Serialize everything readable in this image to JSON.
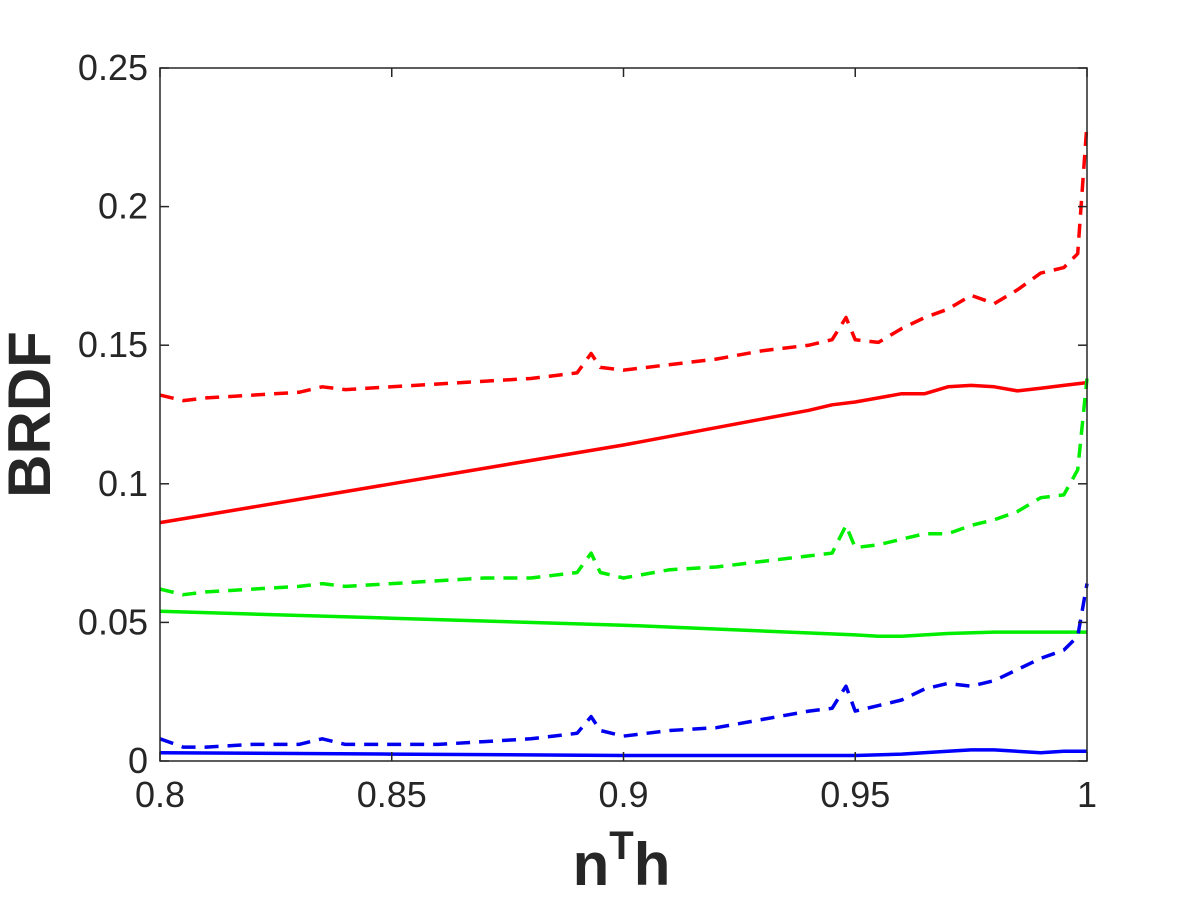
{
  "chart_data": {
    "type": "line",
    "title": "",
    "xlabel_base": "n",
    "xlabel_sup": "T",
    "xlabel_tail": "h",
    "ylabel": "BRDF",
    "xlim": [
      0.8,
      1.0
    ],
    "ylim": [
      0,
      0.25
    ],
    "xticks": [
      0.8,
      0.85,
      0.9,
      0.95,
      1.0
    ],
    "xtick_labels": [
      "0.8",
      "0.85",
      "0.9",
      "0.95",
      "1"
    ],
    "yticks": [
      0,
      0.05,
      0.1,
      0.15,
      0.2,
      0.25
    ],
    "ytick_labels": [
      "0",
      "0.05",
      "0.1",
      "0.15",
      "0.2",
      "0.25"
    ],
    "grid": false,
    "legend": "none",
    "series": [
      {
        "color": "#ff0000",
        "style": "solid",
        "x": [
          0.8,
          0.85,
          0.9,
          0.94,
          0.945,
          0.95,
          0.955,
          0.96,
          0.965,
          0.97,
          0.975,
          0.98,
          0.985,
          0.99,
          0.995,
          1.0
        ],
        "y": [
          0.086,
          0.1,
          0.114,
          0.1265,
          0.1285,
          0.1295,
          0.131,
          0.1325,
          0.1325,
          0.135,
          0.1355,
          0.135,
          0.1335,
          0.1345,
          0.1355,
          0.1365
        ]
      },
      {
        "color": "#00ee00",
        "style": "solid",
        "x": [
          0.8,
          0.85,
          0.9,
          0.95,
          0.955,
          0.96,
          0.97,
          0.98,
          0.99,
          1.0
        ],
        "y": [
          0.054,
          0.0515,
          0.049,
          0.0455,
          0.045,
          0.045,
          0.046,
          0.0465,
          0.0465,
          0.0465
        ]
      },
      {
        "color": "#0000ff",
        "style": "solid",
        "x": [
          0.8,
          0.85,
          0.9,
          0.95,
          0.96,
          0.97,
          0.975,
          0.98,
          0.99,
          0.995,
          1.0
        ],
        "y": [
          0.003,
          0.0025,
          0.002,
          0.002,
          0.0025,
          0.0035,
          0.004,
          0.004,
          0.003,
          0.0035,
          0.0035
        ]
      },
      {
        "color": "#ff0000",
        "style": "dashed",
        "x": [
          0.8,
          0.805,
          0.81,
          0.82,
          0.83,
          0.835,
          0.84,
          0.85,
          0.86,
          0.87,
          0.88,
          0.89,
          0.893,
          0.895,
          0.9,
          0.91,
          0.92,
          0.93,
          0.94,
          0.945,
          0.948,
          0.95,
          0.955,
          0.96,
          0.965,
          0.97,
          0.975,
          0.98,
          0.985,
          0.99,
          0.995,
          0.998,
          1.0
        ],
        "y": [
          0.132,
          0.13,
          0.131,
          0.132,
          0.133,
          0.135,
          0.134,
          0.135,
          0.136,
          0.137,
          0.138,
          0.14,
          0.147,
          0.142,
          0.141,
          0.143,
          0.145,
          0.148,
          0.15,
          0.152,
          0.16,
          0.152,
          0.151,
          0.156,
          0.16,
          0.163,
          0.168,
          0.165,
          0.17,
          0.176,
          0.178,
          0.183,
          0.23
        ]
      },
      {
        "color": "#00ee00",
        "style": "dashed",
        "x": [
          0.8,
          0.805,
          0.81,
          0.82,
          0.83,
          0.835,
          0.84,
          0.85,
          0.86,
          0.87,
          0.88,
          0.89,
          0.893,
          0.895,
          0.9,
          0.91,
          0.92,
          0.93,
          0.94,
          0.945,
          0.948,
          0.95,
          0.955,
          0.96,
          0.965,
          0.97,
          0.975,
          0.98,
          0.985,
          0.99,
          0.995,
          0.998,
          1.0
        ],
        "y": [
          0.062,
          0.06,
          0.061,
          0.062,
          0.063,
          0.064,
          0.063,
          0.064,
          0.065,
          0.066,
          0.066,
          0.068,
          0.075,
          0.068,
          0.066,
          0.069,
          0.07,
          0.072,
          0.074,
          0.075,
          0.085,
          0.077,
          0.078,
          0.08,
          0.082,
          0.082,
          0.085,
          0.087,
          0.09,
          0.095,
          0.096,
          0.105,
          0.138
        ]
      },
      {
        "color": "#0000ee",
        "style": "dashed",
        "x": [
          0.8,
          0.805,
          0.81,
          0.82,
          0.83,
          0.835,
          0.84,
          0.85,
          0.86,
          0.87,
          0.88,
          0.89,
          0.893,
          0.895,
          0.9,
          0.91,
          0.92,
          0.93,
          0.94,
          0.945,
          0.948,
          0.95,
          0.955,
          0.96,
          0.965,
          0.97,
          0.975,
          0.98,
          0.985,
          0.99,
          0.995,
          0.998,
          1.0
        ],
        "y": [
          0.008,
          0.005,
          0.005,
          0.006,
          0.006,
          0.008,
          0.006,
          0.006,
          0.006,
          0.007,
          0.008,
          0.01,
          0.016,
          0.011,
          0.009,
          0.011,
          0.012,
          0.015,
          0.018,
          0.019,
          0.027,
          0.018,
          0.02,
          0.022,
          0.026,
          0.028,
          0.027,
          0.029,
          0.033,
          0.037,
          0.04,
          0.045,
          0.064
        ]
      }
    ]
  }
}
